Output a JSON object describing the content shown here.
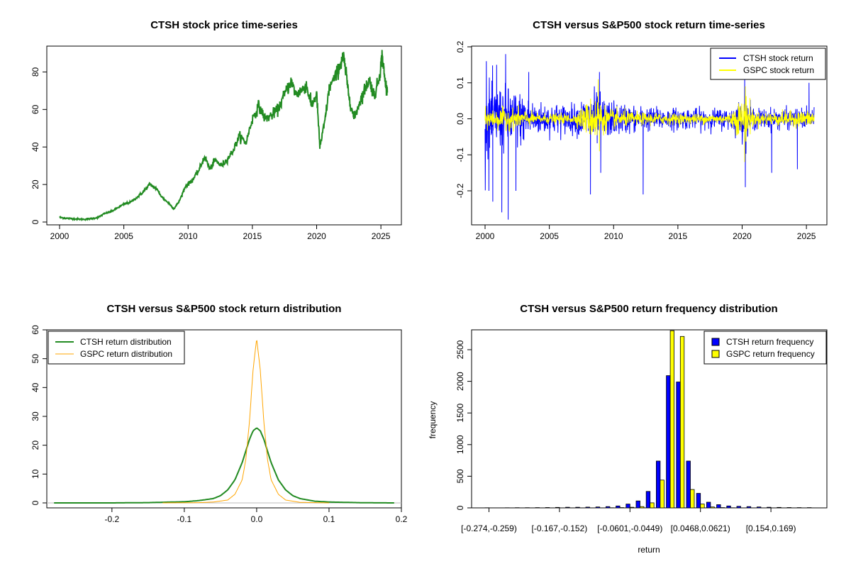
{
  "chart_data": [
    {
      "type": "line",
      "title": "CTSH stock price time-series",
      "xlabel": "",
      "ylabel": "",
      "xlim": [
        2000,
        2025.6
      ],
      "ylim": [
        0,
        90
      ],
      "x_ticks": [
        "2000",
        "2005",
        "2010",
        "2015",
        "2020",
        "2025"
      ],
      "y_ticks": [
        "0",
        "20",
        "40",
        "60",
        "80"
      ],
      "series": [
        {
          "color": "#228B22",
          "x": [
            2000.0,
            2000.5,
            2001.0,
            2001.5,
            2002.0,
            2002.5,
            2003.0,
            2003.5,
            2004.0,
            2004.5,
            2005.0,
            2005.5,
            2006.0,
            2006.5,
            2007.0,
            2007.5,
            2008.0,
            2008.5,
            2008.9,
            2009.3,
            2009.8,
            2010.3,
            2010.8,
            2011.3,
            2011.7,
            2012.1,
            2012.6,
            2013.0,
            2013.5,
            2014.0,
            2014.5,
            2015.0,
            2015.5,
            2016.0,
            2016.5,
            2017.0,
            2017.5,
            2018.0,
            2018.4,
            2018.8,
            2019.2,
            2019.6,
            2020.0,
            2020.25,
            2020.6,
            2021.0,
            2021.5,
            2021.9,
            2022.1,
            2022.5,
            2022.9,
            2023.3,
            2023.7,
            2024.1,
            2024.5,
            2024.9,
            2025.1,
            2025.3,
            2025.5
          ],
          "y": [
            2.5,
            2.0,
            1.8,
            1.5,
            1.5,
            1.8,
            2.5,
            4.5,
            5.5,
            7.5,
            9.5,
            10.5,
            13.0,
            16.0,
            20.0,
            18.0,
            13.0,
            10.0,
            7.0,
            11.0,
            19.0,
            22.0,
            27.0,
            35.0,
            28.0,
            33.0,
            30.0,
            33.0,
            38.0,
            46.0,
            42.0,
            55.0,
            62.0,
            55.0,
            57.0,
            60.0,
            68.0,
            75.0,
            68.0,
            70.0,
            73.0,
            62.0,
            68.0,
            40.0,
            52.0,
            72.0,
            78.0,
            85.0,
            88.0,
            68.0,
            55.0,
            63.0,
            70.0,
            76.0,
            67.0,
            78.0,
            89.0,
            76.0,
            69.0
          ]
        }
      ]
    },
    {
      "type": "line",
      "title": "CTSH versus S&P500 stock return time-series",
      "xlabel": "",
      "ylabel": "",
      "xlim": [
        2000,
        2025.6
      ],
      "ylim": [
        -0.28,
        0.2
      ],
      "x_ticks": [
        "2000",
        "2005",
        "2010",
        "2015",
        "2020",
        "2025"
      ],
      "y_ticks": [
        "-0.2",
        "-0.1",
        "0.0",
        "0.1",
        "0.2"
      ],
      "legend": {
        "position": "top-right",
        "entries": [
          "CTSH stock return",
          "GSPC stock return"
        ]
      },
      "series": [
        {
          "name": "CTSH stock return",
          "color": "#0000FF",
          "vol_x": [
            2000,
            2002.5,
            2004,
            2007,
            2008.5,
            2009.5,
            2012,
            2016,
            2019,
            2020.2,
            2021,
            2025.6
          ],
          "vol_y": [
            0.09,
            0.07,
            0.04,
            0.035,
            0.07,
            0.045,
            0.03,
            0.025,
            0.025,
            0.05,
            0.025,
            0.025
          ],
          "spikes": [
            [
              2000.1,
              0.16
            ],
            [
              2000.3,
              -0.2
            ],
            [
              2000.6,
              -0.23
            ],
            [
              2000.9,
              0.15
            ],
            [
              2001.3,
              -0.26
            ],
            [
              2001.6,
              0.18
            ],
            [
              2001.8,
              -0.28
            ],
            [
              2002.4,
              -0.2
            ],
            [
              2003.4,
              0.13
            ],
            [
              2008.2,
              -0.21
            ],
            [
              2008.9,
              0.13
            ],
            [
              2009.0,
              -0.15
            ],
            [
              2012.3,
              -0.21
            ],
            [
              2020.2,
              0.12
            ],
            [
              2020.25,
              -0.19
            ],
            [
              2022.3,
              -0.15
            ],
            [
              2024.3,
              -0.14
            ],
            [
              2025.2,
              0.1
            ]
          ]
        },
        {
          "name": "GSPC stock return",
          "color": "#FFFF00",
          "vol_x": [
            2000,
            2002.5,
            2004,
            2007,
            2008.6,
            2009.5,
            2012,
            2016,
            2019,
            2020.2,
            2021,
            2025.6
          ],
          "vol_y": [
            0.025,
            0.025,
            0.012,
            0.012,
            0.06,
            0.025,
            0.015,
            0.012,
            0.012,
            0.06,
            0.015,
            0.02
          ],
          "spikes": [
            [
              2008.8,
              0.11
            ],
            [
              2008.9,
              -0.09
            ],
            [
              2020.2,
              -0.12
            ],
            [
              2020.25,
              0.09
            ]
          ]
        }
      ]
    },
    {
      "type": "line",
      "title": "CTSH versus S&P500 stock return distribution",
      "xlabel": "",
      "ylabel": "",
      "xlim": [
        -0.29,
        0.2
      ],
      "ylim": [
        0,
        60
      ],
      "x_ticks": [
        "-0.2",
        "-0.1",
        "0.0",
        "0.1",
        "0.2"
      ],
      "y_ticks": [
        "0",
        "10",
        "20",
        "30",
        "40",
        "50",
        "60"
      ],
      "legend": {
        "position": "top-left",
        "entries": [
          "CTSH return distribution",
          "GSPC return distribution"
        ]
      },
      "series": [
        {
          "name": "CTSH return distribution",
          "color": "#228B22",
          "x": [
            -0.28,
            -0.2,
            -0.15,
            -0.1,
            -0.08,
            -0.06,
            -0.05,
            -0.04,
            -0.03,
            -0.02,
            -0.015,
            -0.01,
            -0.005,
            0.0,
            0.005,
            0.01,
            0.015,
            0.02,
            0.03,
            0.04,
            0.05,
            0.06,
            0.08,
            0.1,
            0.15,
            0.19
          ],
          "y": [
            0.0,
            0.0,
            0.1,
            0.4,
            0.8,
            1.5,
            2.5,
            4.5,
            8.0,
            14.0,
            18.0,
            22.0,
            25.0,
            26.0,
            25.0,
            22.0,
            18.0,
            14.0,
            8.0,
            4.5,
            2.5,
            1.5,
            0.6,
            0.3,
            0.05,
            0.0
          ]
        },
        {
          "name": "GSPC return distribution",
          "color": "#FFA500",
          "x": [
            -0.13,
            -0.08,
            -0.06,
            -0.04,
            -0.03,
            -0.02,
            -0.015,
            -0.01,
            -0.005,
            0.0,
            0.005,
            0.01,
            0.015,
            0.02,
            0.03,
            0.04,
            0.06,
            0.1
          ],
          "y": [
            0.0,
            0.1,
            0.3,
            1.0,
            3.0,
            8.0,
            15.0,
            28.0,
            46.0,
            57.0,
            46.0,
            28.0,
            15.0,
            8.0,
            3.0,
            1.0,
            0.2,
            0.0
          ]
        }
      ]
    },
    {
      "type": "bar",
      "title": "CTSH versus S&P500 return frequency distribution",
      "xlabel": "return",
      "ylabel": "frequency",
      "ylim": [
        0,
        2800
      ],
      "y_ticks": [
        "0",
        "500",
        "1000",
        "1500",
        "2000",
        "2500"
      ],
      "x_labels": [
        "[-0.274,-0.259)",
        "[-0.167,-0.152)",
        "[-0.0601,-0.0449)",
        "[0.0468,0.0621)",
        "[0.154,0.169)"
      ],
      "label_at_bin": [
        0,
        7,
        14,
        21,
        28
      ],
      "legend": {
        "position": "top-right",
        "entries": [
          "CTSH return frequency",
          "GSPC return frequency"
        ]
      },
      "series": [
        {
          "name": "CTSH return frequency",
          "color": "#0000FF",
          "values": [
            2,
            1,
            2,
            3,
            3,
            5,
            6,
            8,
            10,
            10,
            12,
            15,
            20,
            30,
            60,
            110,
            260,
            740,
            2090,
            1990,
            740,
            230,
            90,
            50,
            30,
            25,
            20,
            15,
            10,
            8,
            6,
            5,
            5
          ]
        },
        {
          "name": "GSPC return frequency",
          "color": "#FFFF00",
          "values": [
            0,
            0,
            0,
            0,
            0,
            0,
            0,
            0,
            0,
            0,
            0,
            0,
            2,
            5,
            10,
            20,
            80,
            440,
            2800,
            2710,
            290,
            60,
            15,
            5,
            2,
            0,
            0,
            0,
            0,
            0,
            0,
            0,
            0
          ]
        }
      ]
    }
  ]
}
